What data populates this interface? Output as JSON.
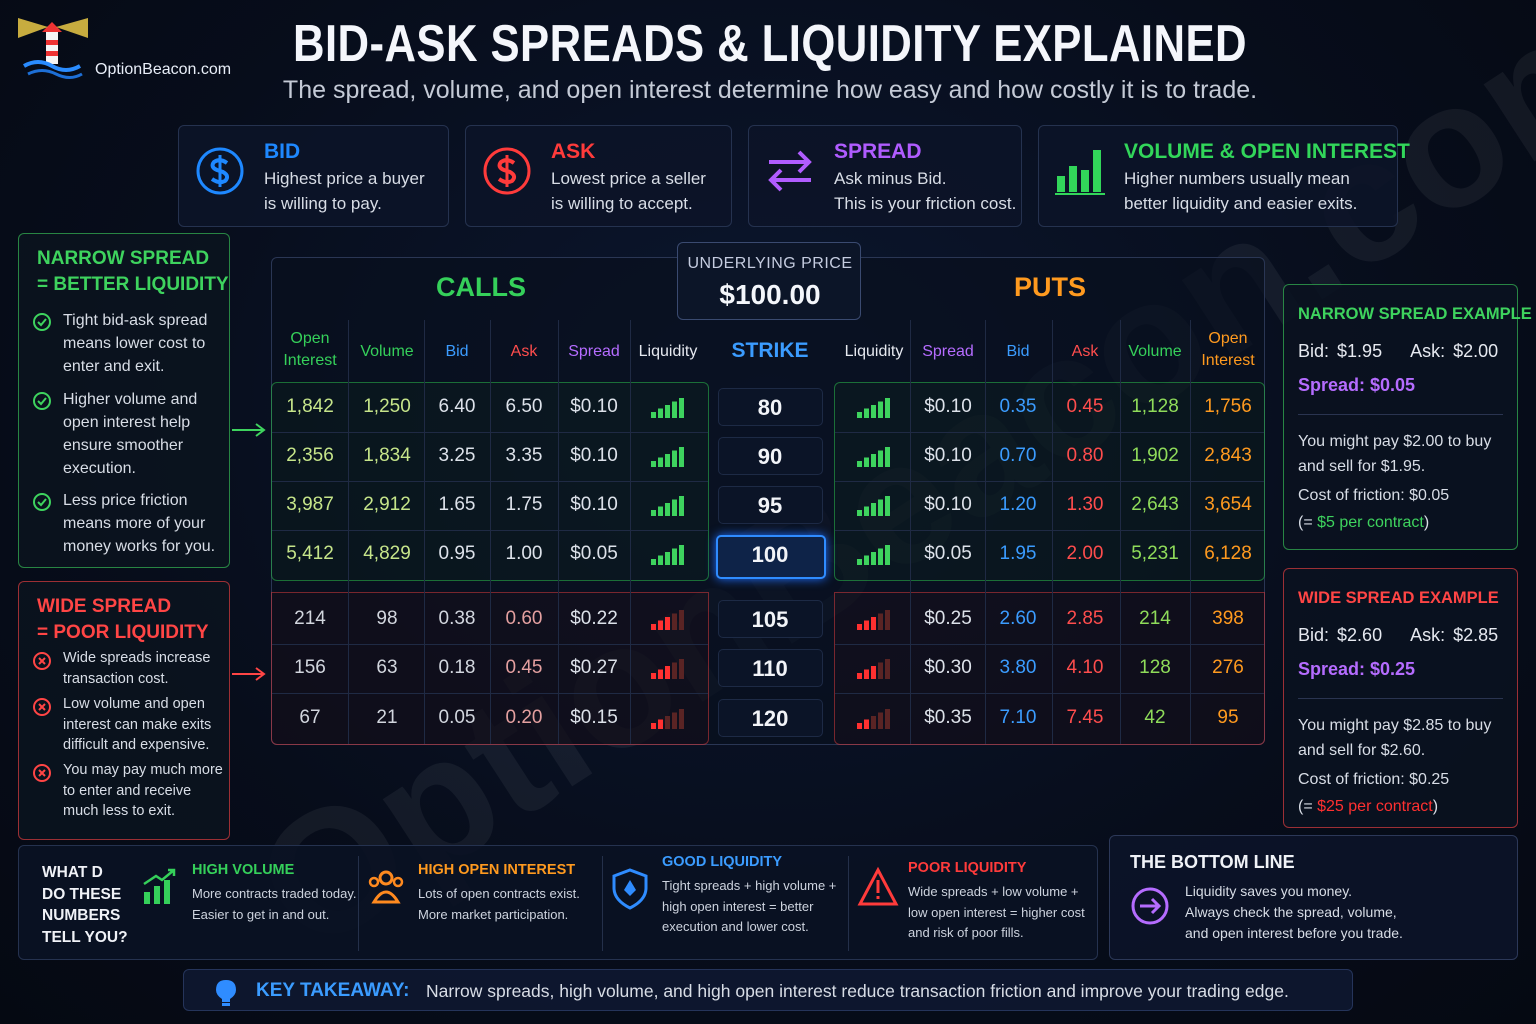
{
  "brand": "OptionBeacon.com",
  "title": "BID-ASK SPREADS & LIQUIDITY EXPLAINED",
  "subtitle": "The spread, volume, and open interest determine how easy and how costly it is to trade.",
  "cards": [
    {
      "title": "BID",
      "lines": [
        "Highest price a buyer",
        "is willing to pay."
      ]
    },
    {
      "title": "ASK",
      "lines": [
        "Lowest price a seller",
        "is willing to accept."
      ]
    },
    {
      "title": "SPREAD",
      "lines": [
        "Ask minus Bid.",
        "This is your friction cost."
      ]
    },
    {
      "title": "VOLUME & OPEN INTEREST",
      "lines": [
        "Higher numbers usually mean",
        "better liquidity and easier exits."
      ]
    }
  ],
  "narrow_panel": {
    "title": [
      "NARROW SPREAD",
      "= BETTER LIQUIDITY"
    ],
    "items": [
      "Tight bid-ask spread means lower cost to enter and exit.",
      "Higher volume and open interest help ensure smoother execution.",
      "Less price friction means more of your money works for you."
    ]
  },
  "wide_panel": {
    "title": [
      "WIDE SPREAD",
      "= POOR LIQUIDITY"
    ],
    "items": [
      "Wide spreads increase transaction cost.",
      "Low volume and open interest can make exits difficult and expensive.",
      "You may pay much more to enter and receive much less to exit."
    ]
  },
  "table": {
    "calls_title": "CALLS",
    "puts_title": "PUTS",
    "underlying_label": "UNDERLYING PRICE",
    "underlying_price": "$100.00",
    "call_headers": [
      "Open Interest",
      "Volume",
      "Bid",
      "Ask",
      "Spread",
      "Liquidity"
    ],
    "strike_header": "STRIKE",
    "put_headers": [
      "Liquidity",
      "Spread",
      "Bid",
      "Ask",
      "Volume",
      "Open Interest"
    ],
    "good_rows": [
      {
        "calls": [
          "1,842",
          "1,250",
          "6.40",
          "6.50",
          "$0.10"
        ],
        "strike": "80",
        "puts": [
          "$0.10",
          "0.35",
          "0.45",
          "1,128",
          "1,756"
        ]
      },
      {
        "calls": [
          "2,356",
          "1,834",
          "3.25",
          "3.35",
          "$0.10"
        ],
        "strike": "90",
        "puts": [
          "$0.10",
          "0.70",
          "0.80",
          "1,902",
          "2,843"
        ]
      },
      {
        "calls": [
          "3,987",
          "2,912",
          "1.65",
          "1.75",
          "$0.10"
        ],
        "strike": "95",
        "puts": [
          "$0.10",
          "1.20",
          "1.30",
          "2,643",
          "3,654"
        ]
      },
      {
        "calls": [
          "5,412",
          "4,829",
          "0.95",
          "1.00",
          "$0.05"
        ],
        "strike": "100",
        "puts": [
          "$0.05",
          "1.95",
          "2.00",
          "5,231",
          "6,128"
        ]
      }
    ],
    "poor_rows": [
      {
        "calls": [
          "214",
          "98",
          "0.38",
          "0.60",
          "$0.22"
        ],
        "strike": "105",
        "puts": [
          "$0.25",
          "2.60",
          "2.85",
          "214",
          "398"
        ]
      },
      {
        "calls": [
          "156",
          "63",
          "0.18",
          "0.45",
          "$0.27"
        ],
        "strike": "110",
        "puts": [
          "$0.30",
          "3.80",
          "4.10",
          "128",
          "276"
        ]
      },
      {
        "calls": [
          "67",
          "21",
          "0.05",
          "0.20",
          "$0.15"
        ],
        "strike": "120",
        "puts": [
          "$0.35",
          "7.10",
          "7.45",
          "42",
          "95"
        ]
      }
    ]
  },
  "examples": [
    {
      "title": "NARROW SPREAD EXAMPLE",
      "bid_label": "Bid:",
      "bid": "$1.95",
      "ask_label": "Ask:",
      "ask": "$2.00",
      "spread": "Spread: $0.05",
      "lines": [
        "You might pay $2.00 to buy",
        "and sell for $1.95.",
        "Cost of friction: $0.05"
      ],
      "note": [
        "(= ",
        "$5 per contract",
        ")"
      ]
    },
    {
      "title": "WIDE SPREAD EXAMPLE",
      "bid_label": "Bid:",
      "bid": "$2.60",
      "ask_label": "Ask:",
      "ask": "$2.85",
      "spread": "Spread: $0.25",
      "lines": [
        "You might pay $2.85 to buy",
        "and sell for $2.60.",
        "Cost of friction: $0.25"
      ],
      "note": [
        "(= ",
        "$25 per contract",
        ")"
      ]
    }
  ],
  "bottom": {
    "question": [
      "WHAT D",
      "DO THESE",
      "NUMBERS",
      "TELL YOU?"
    ],
    "items": [
      {
        "title": "HIGH VOLUME",
        "lines": [
          "More contracts traded today.",
          "Easier to get in and out."
        ]
      },
      {
        "title": "HIGH OPEN INTEREST",
        "lines": [
          "Lots of open contracts exist.",
          "More market participation."
        ]
      },
      {
        "title": "GOOD LIQUIDITY",
        "lines": [
          "Tight spreads + high volume +",
          "high open interest = better",
          "execution and lower cost."
        ]
      },
      {
        "title": "POOR LIQUIDITY",
        "lines": [
          "Wide spreads + low volume +",
          "low open interest = higher cost",
          "and risk of poor fills."
        ]
      }
    ]
  },
  "bottom_line": {
    "title": "THE BOTTOM LINE",
    "lines": [
      "Liquidity saves you money.",
      "Always check the spread, volume,",
      "and open interest before you trade."
    ]
  },
  "key_takeaway": {
    "label": "KEY TAKEAWAY:",
    "text": "Narrow spreads, high volume, and high open interest reduce transaction friction and improve your trading edge."
  },
  "watermark": "OptionBeacon.com"
}
